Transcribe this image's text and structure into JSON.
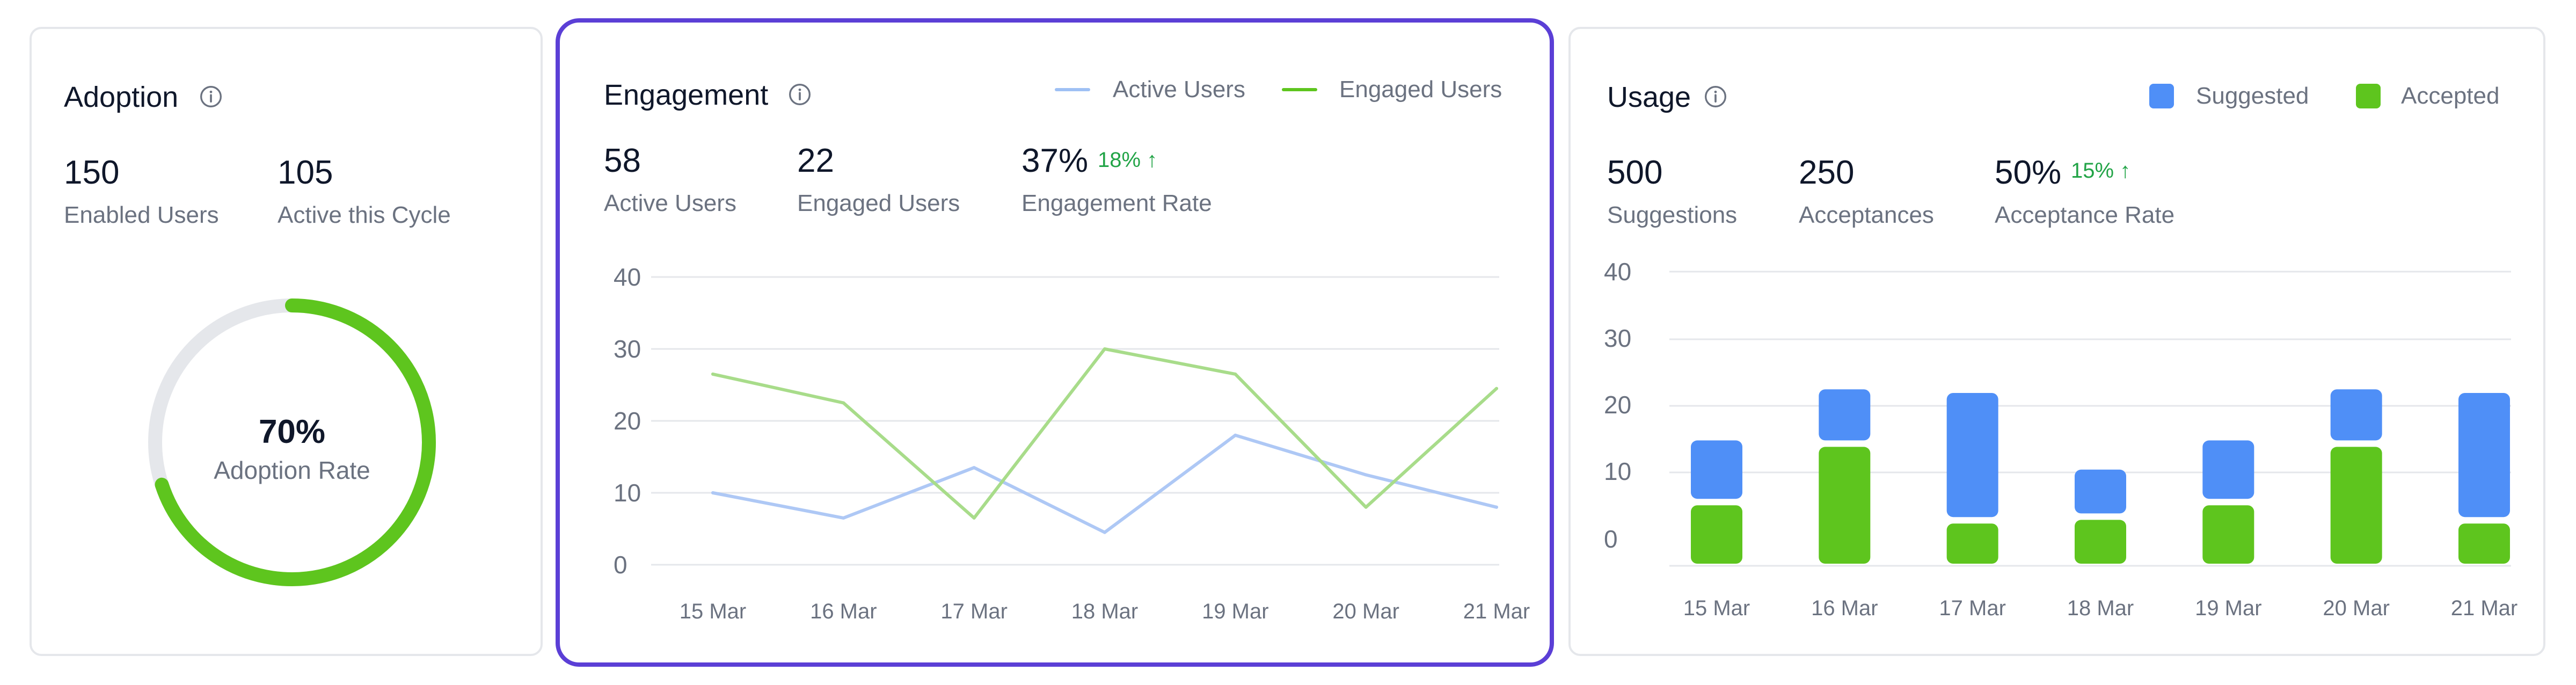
{
  "adoption": {
    "title": "Adoption",
    "stats": [
      {
        "value": "150",
        "label": "Enabled Users"
      },
      {
        "value": "105",
        "label": "Active this Cycle"
      }
    ],
    "gauge": {
      "value_text": "70%",
      "label": "Adoption Rate",
      "fraction": 0.7
    },
    "colors": {
      "progress": "#5ec51e",
      "track": "#e5e7eb"
    }
  },
  "engagement": {
    "title": "Engagement",
    "legend": [
      "Active Users",
      "Engaged Users"
    ],
    "stats": [
      {
        "value": "58",
        "label": "Active Users"
      },
      {
        "value": "22",
        "label": "Engaged Users"
      },
      {
        "value": "37%",
        "label": "Engagement Rate",
        "delta": "18% ↑"
      }
    ],
    "colors": {
      "active": "#aec8f5",
      "engaged": "#a8dc8a",
      "legend_active": "#9ec0f4",
      "legend_engaged": "#5ec51e",
      "delta": "#22a447"
    }
  },
  "usage": {
    "title": "Usage",
    "legend": [
      "Suggested",
      "Accepted"
    ],
    "stats": [
      {
        "value": "500",
        "label": "Suggestions"
      },
      {
        "value": "250",
        "label": "Acceptances"
      },
      {
        "value": "50%",
        "label": "Acceptance Rate",
        "delta": "15% ↑"
      }
    ],
    "colors": {
      "suggested": "#4f8ff7",
      "accepted": "#5ec51e",
      "delta": "#22a447"
    }
  },
  "chart_data": [
    {
      "type": "line",
      "x": [
        "15 Mar",
        "16 Mar",
        "17 Mar",
        "18 Mar",
        "19 Mar",
        "20 Mar",
        "21 Mar"
      ],
      "series": [
        {
          "name": "Active Users",
          "values": [
            10,
            6.5,
            13.5,
            4.5,
            18,
            12.5,
            8
          ]
        },
        {
          "name": "Engaged Users",
          "values": [
            26.5,
            22.5,
            6.5,
            30,
            26.5,
            8,
            24.5
          ]
        }
      ],
      "yticks": [
        "40",
        "30",
        "20",
        "10",
        "0"
      ],
      "ylim": [
        0,
        40
      ],
      "grid": true,
      "legend_position": "top-right"
    },
    {
      "type": "bar",
      "categories": [
        "15 Mar",
        "16 Mar",
        "17 Mar",
        "18 Mar",
        "19 Mar",
        "20 Mar",
        "21 Mar"
      ],
      "series": [
        {
          "name": "Suggested",
          "values": [
            8,
            7,
            17,
            6,
            8,
            7,
            17
          ]
        },
        {
          "name": "Accepted",
          "values": [
            8,
            16,
            5.5,
            6,
            8,
            16,
            5.5
          ]
        }
      ],
      "yticks": [
        "40",
        "30",
        "20",
        "10",
        "0"
      ],
      "grid": true,
      "legend_position": "top-right"
    }
  ]
}
